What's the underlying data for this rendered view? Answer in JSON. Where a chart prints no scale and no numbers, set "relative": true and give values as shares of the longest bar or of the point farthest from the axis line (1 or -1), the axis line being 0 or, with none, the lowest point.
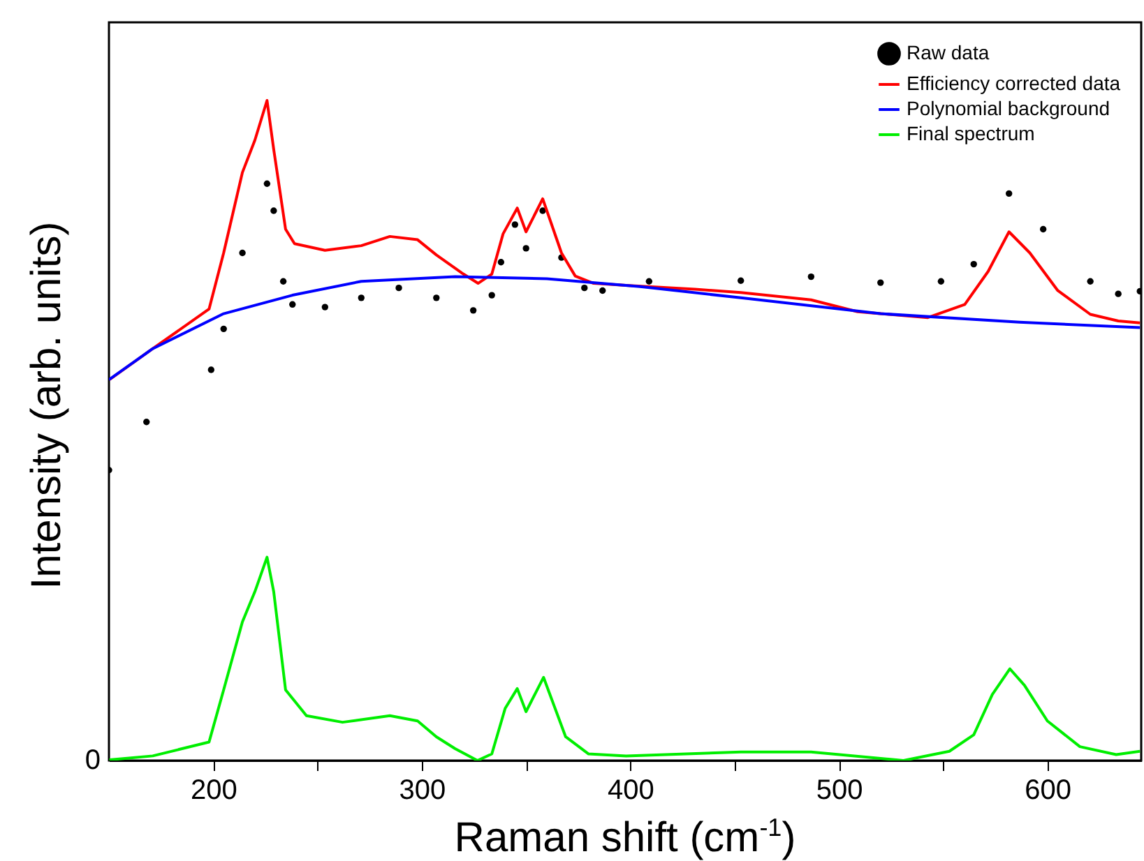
{
  "chart_data": {
    "type": "line",
    "relative": true,
    "xlabel": "Raman shift (cm$^{-1}$)",
    "ylabel": "Intensity (arb. units)",
    "xlim": [
      150,
      645
    ],
    "xticks": [
      200,
      {
        "value": 250,
        "label": null
      },
      300,
      {
        "value": 350,
        "label": null
      },
      400,
      {
        "value": 450,
        "label": null
      },
      500,
      {
        "value": 550,
        "label": null
      },
      600
    ],
    "grid": false,
    "legend": "top right",
    "annotations": [
      "0"
    ],
    "line_style": "solid",
    "series": [
      {
        "name": "Raw data",
        "color": "#000000",
        "type": "scatter",
        "marker": "circle",
        "x": [
          150,
          168,
          199,
          205,
          214,
          225.8,
          229,
          233.6,
          238,
          253.6,
          271,
          289,
          307,
          324.7,
          333.6,
          338,
          344.7,
          350,
          358,
          367,
          378,
          386.7,
          409,
          453,
          486.7,
          520,
          549,
          564.7,
          581.6,
          598,
          620.6,
          634,
          644.4
        ],
        "values": [
          0.44,
          0.513,
          0.592,
          0.654,
          0.769,
          0.874,
          0.833,
          0.726,
          0.691,
          0.687,
          0.701,
          0.716,
          0.701,
          0.682,
          0.705,
          0.755,
          0.812,
          0.776,
          0.833,
          0.762,
          0.716,
          0.712,
          0.726,
          0.727,
          0.733,
          0.724,
          0.726,
          0.752,
          0.859,
          0.805,
          0.726,
          0.707,
          0.711
        ]
      },
      {
        "name": "Efficiency corrected data",
        "color": "#ff0000",
        "x": [
          150.2,
          171,
          198,
          205,
          214,
          220,
          225.8,
          229,
          234.7,
          239,
          253.6,
          271,
          284.7,
          298,
          307,
          320,
          327,
          333.6,
          339,
          345.8,
          350,
          358,
          367,
          373.6,
          382.4,
          398,
          431,
          453,
          486.7,
          509,
          542.7,
          560.4,
          571.6,
          581.6,
          591.6,
          605,
          620.6,
          634,
          644.4
        ],
        "values": [
          0.577,
          0.624,
          0.684,
          0.769,
          0.891,
          0.94,
          1.0,
          0.926,
          0.805,
          0.783,
          0.773,
          0.78,
          0.794,
          0.789,
          0.766,
          0.737,
          0.723,
          0.737,
          0.798,
          0.837,
          0.801,
          0.851,
          0.769,
          0.734,
          0.723,
          0.72,
          0.714,
          0.709,
          0.698,
          0.68,
          0.671,
          0.691,
          0.741,
          0.801,
          0.769,
          0.712,
          0.676,
          0.666,
          0.663
        ]
      },
      {
        "name": "Polynomial background",
        "color": "#0000ff",
        "x": [
          150,
          171,
          205,
          238,
          271,
          316,
          360,
          404.7,
          453,
          520,
          586.7,
          644.4
        ],
        "values": [
          0.577,
          0.624,
          0.677,
          0.705,
          0.726,
          0.733,
          0.73,
          0.718,
          0.701,
          0.677,
          0.664,
          0.656
        ]
      },
      {
        "name": "Final spectrum",
        "color": "#00ee00",
        "x": [
          150.2,
          171,
          198,
          205,
          214,
          220,
          225.8,
          229,
          234.7,
          244.7,
          262,
          284.7,
          298,
          307,
          316,
          326.7,
          333.6,
          340,
          345.8,
          350,
          358.4,
          369,
          380,
          398,
          453,
          486.7,
          531,
          553,
          564.7,
          573.6,
          582,
          589,
          600,
          615.6,
          633,
          644.4
        ],
        "values": [
          0.001,
          0.007,
          0.028,
          0.107,
          0.21,
          0.256,
          0.308,
          0.256,
          0.107,
          0.068,
          0.058,
          0.068,
          0.06,
          0.036,
          0.018,
          0.0,
          0.01,
          0.079,
          0.109,
          0.074,
          0.126,
          0.036,
          0.01,
          0.007,
          0.013,
          0.013,
          0.0,
          0.014,
          0.039,
          0.1,
          0.139,
          0.114,
          0.06,
          0.021,
          0.009,
          0.014
        ]
      }
    ]
  }
}
